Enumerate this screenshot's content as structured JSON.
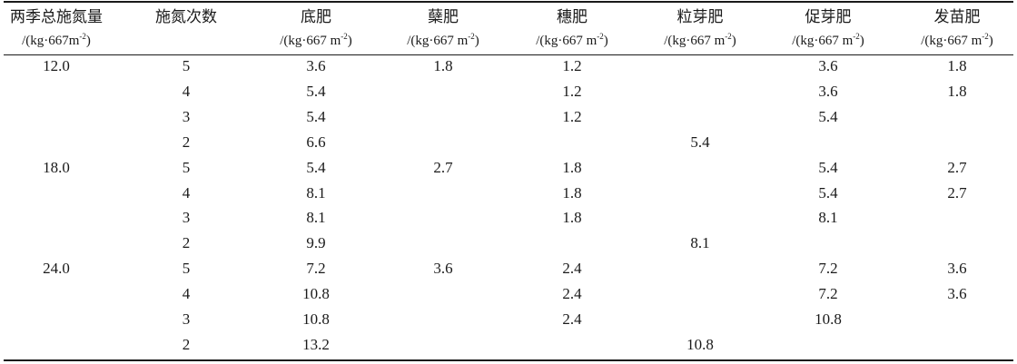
{
  "table": {
    "headers": [
      {
        "name": "两季总施氮量",
        "unit_pre": "/(kg·667m",
        "unit_sup": "-2",
        "unit_post": ")"
      },
      {
        "name": "施氮次数",
        "unit_pre": "",
        "unit_sup": "",
        "unit_post": ""
      },
      {
        "name": "底肥",
        "unit_pre": "/(kg·667 m",
        "unit_sup": "-2",
        "unit_post": ")"
      },
      {
        "name": "蘖肥",
        "unit_pre": "/(kg·667 m",
        "unit_sup": "-2",
        "unit_post": ")"
      },
      {
        "name": "穗肥",
        "unit_pre": "/(kg·667 m",
        "unit_sup": "-2",
        "unit_post": ")"
      },
      {
        "name": "粒芽肥",
        "unit_pre": "/(kg·667 m",
        "unit_sup": "-2",
        "unit_post": ")"
      },
      {
        "name": "促芽肥",
        "unit_pre": "/(kg·667 m",
        "unit_sup": "-2",
        "unit_post": ")"
      },
      {
        "name": "发苗肥",
        "unit_pre": "/(kg·667 m",
        "unit_sup": "-2",
        "unit_post": ")"
      }
    ],
    "rows": [
      [
        "12.0",
        "5",
        "3.6",
        "1.8",
        "1.2",
        "",
        "3.6",
        "1.8"
      ],
      [
        "",
        "4",
        "5.4",
        "",
        "1.2",
        "",
        "3.6",
        "1.8"
      ],
      [
        "",
        "3",
        "5.4",
        "",
        "1.2",
        "",
        "5.4",
        ""
      ],
      [
        "",
        "2",
        "6.6",
        "",
        "",
        "5.4",
        "",
        ""
      ],
      [
        "18.0",
        "5",
        "5.4",
        "2.7",
        "1.8",
        "",
        "5.4",
        "2.7"
      ],
      [
        "",
        "4",
        "8.1",
        "",
        "1.8",
        "",
        "5.4",
        "2.7"
      ],
      [
        "",
        "3",
        "8.1",
        "",
        "1.8",
        "",
        "8.1",
        ""
      ],
      [
        "",
        "2",
        "9.9",
        "",
        "",
        "8.1",
        "",
        ""
      ],
      [
        "24.0",
        "5",
        "7.2",
        "3.6",
        "2.4",
        "",
        "7.2",
        "3.6"
      ],
      [
        "",
        "4",
        "10.8",
        "",
        "2.4",
        "",
        "7.2",
        "3.6"
      ],
      [
        "",
        "3",
        "10.8",
        "",
        "2.4",
        "",
        "10.8",
        ""
      ],
      [
        "",
        "2",
        "13.2",
        "",
        "",
        "10.8",
        "",
        ""
      ]
    ]
  }
}
